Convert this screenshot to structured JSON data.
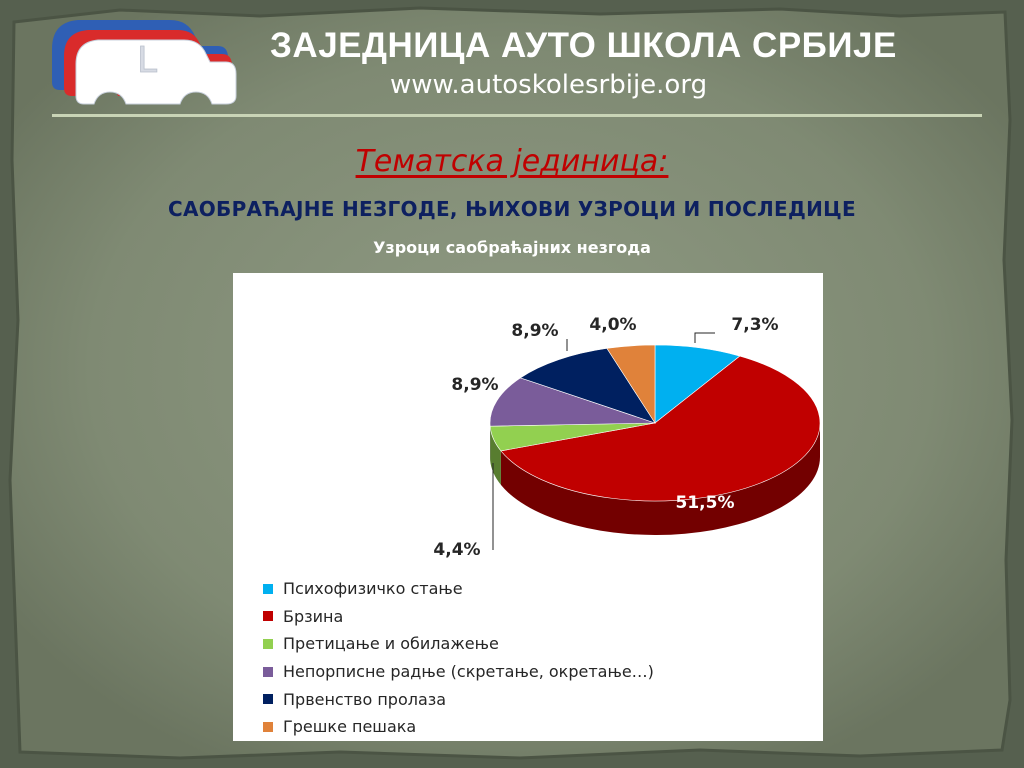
{
  "header": {
    "title": "ЗАЈЕДНИЦА АУТО ШКОЛА СРБИЈЕ",
    "url": "www.autoskolesrbije.org"
  },
  "logo": {
    "letter": "L",
    "colors": [
      "#2f5fb5",
      "#d92b2b",
      "#ffffff"
    ]
  },
  "topic": {
    "label": "Тематска јединица:",
    "title": "САОБРАЋАЈНЕ НЕЗГОДЕ, ЊИХОВИ УЗРОЦИ И ПОСЛЕДИЦЕ"
  },
  "chart_subtitle": "Узроци саобраћајних незгода",
  "chart_data": {
    "type": "pie",
    "title": "",
    "series": [
      {
        "name": "Психофизичко стање",
        "value": 7.3,
        "label": "7,3%",
        "color": "#00b0f0"
      },
      {
        "name": "Брзина",
        "value": 51.5,
        "label": "51,5%",
        "color": "#c00000"
      },
      {
        "name": "Претицање и обилажење",
        "value": 4.4,
        "label": "4,4%",
        "color": "#92d050"
      },
      {
        "name": "Непорписне радње (скретање, окретање…)",
        "value": 8.9,
        "label": "8,9%",
        "color": "#7a5c9a"
      },
      {
        "name": "Првенство пролаза",
        "value": 8.9,
        "label": "8,9%",
        "color": "#002060"
      },
      {
        "name": "Грешке пешака",
        "value": 4.0,
        "label": "4,0%",
        "color": "#e0823a"
      }
    ],
    "legend_position": "bottom"
  }
}
